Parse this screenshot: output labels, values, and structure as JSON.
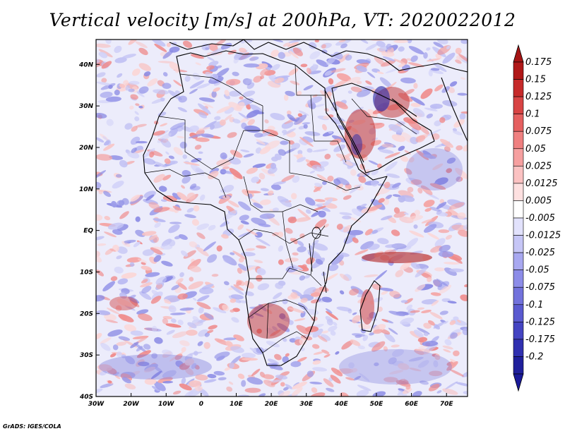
{
  "title": "Vertical velocity [m/s] at 200hPa, VT: 2020022012",
  "credit": "GrADS: IGES/COLA",
  "map": {
    "lon_range": [
      -30,
      76
    ],
    "lat_range": [
      -40,
      46
    ],
    "lat_ticks": [
      {
        "value": 40,
        "label": "40N"
      },
      {
        "value": 30,
        "label": "30N"
      },
      {
        "value": 20,
        "label": "20N"
      },
      {
        "value": 10,
        "label": "10N"
      },
      {
        "value": 0,
        "label": "EQ"
      },
      {
        "value": -10,
        "label": "10S"
      },
      {
        "value": -20,
        "label": "20S"
      },
      {
        "value": -30,
        "label": "30S"
      },
      {
        "value": -40,
        "label": "40S"
      }
    ],
    "lon_ticks": [
      {
        "value": -30,
        "label": "30W"
      },
      {
        "value": -20,
        "label": "20W"
      },
      {
        "value": -10,
        "label": "10W"
      },
      {
        "value": 0,
        "label": "0"
      },
      {
        "value": 10,
        "label": "10E"
      },
      {
        "value": 20,
        "label": "20E"
      },
      {
        "value": 30,
        "label": "30E"
      },
      {
        "value": 40,
        "label": "40E"
      },
      {
        "value": 50,
        "label": "50E"
      },
      {
        "value": 60,
        "label": "60E"
      },
      {
        "value": 70,
        "label": "70E"
      }
    ]
  },
  "colorbar": {
    "levels": [
      {
        "label": "0.175",
        "color": "#b01818"
      },
      {
        "label": "0.15",
        "color": "#c62a2a"
      },
      {
        "label": "0.125",
        "color": "#d84444"
      },
      {
        "label": "0.1",
        "color": "#e56060"
      },
      {
        "label": "0.075",
        "color": "#ef8080"
      },
      {
        "label": "0.05",
        "color": "#f6a0a0"
      },
      {
        "label": "0.025",
        "color": "#fbc2c2"
      },
      {
        "label": "0.0125",
        "color": "#fde0e0"
      },
      {
        "label": "0.005",
        "color": "#ffffff"
      },
      {
        "label": "-0.005",
        "color": "#e2e2fc"
      },
      {
        "label": "-0.0125",
        "color": "#c6c6f6"
      },
      {
        "label": "-0.025",
        "color": "#a8a8f0"
      },
      {
        "label": "-0.05",
        "color": "#8c8ce8"
      },
      {
        "label": "-0.075",
        "color": "#7272dc"
      },
      {
        "label": "-0.1",
        "color": "#5a5ad0"
      },
      {
        "label": "-0.125",
        "color": "#4444c2"
      },
      {
        "label": "-0.175",
        "color": "#3030b0"
      },
      {
        "label": "-0.2",
        "color": "#20209c"
      }
    ],
    "top_cap_color": "#a51414",
    "bottom_cap_color": "#1a1a9a"
  }
}
